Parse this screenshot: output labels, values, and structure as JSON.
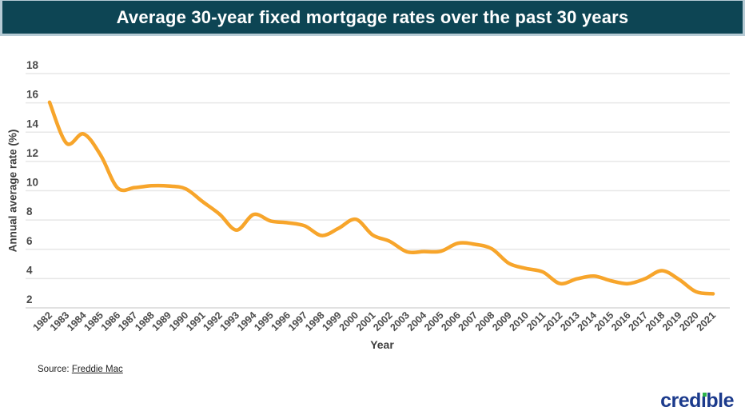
{
  "header": {
    "title": "Average 30-year fixed mortgage rates over the past 30 years"
  },
  "chart_data": {
    "type": "line",
    "title": "Average 30-year fixed mortgage rates over the past 30 years",
    "xlabel": "Year",
    "ylabel": "Annual average rate (%)",
    "x": [
      1982,
      1983,
      1984,
      1985,
      1986,
      1987,
      1988,
      1989,
      1990,
      1991,
      1992,
      1993,
      1994,
      1995,
      1996,
      1997,
      1998,
      1999,
      2000,
      2001,
      2002,
      2003,
      2004,
      2005,
      2006,
      2007,
      2008,
      2009,
      2010,
      2011,
      2012,
      2013,
      2014,
      2015,
      2016,
      2017,
      2018,
      2019,
      2020,
      2021
    ],
    "series": [
      {
        "name": "30-year fixed mortgage rate",
        "values": [
          16.04,
          13.24,
          13.88,
          12.43,
          10.19,
          10.21,
          10.34,
          10.32,
          10.13,
          9.25,
          8.39,
          7.31,
          8.38,
          7.93,
          7.81,
          7.6,
          6.94,
          7.44,
          8.05,
          6.97,
          6.54,
          5.83,
          5.84,
          5.87,
          6.41,
          6.34,
          6.03,
          5.04,
          4.69,
          4.45,
          3.66,
          3.98,
          4.17,
          3.85,
          3.65,
          3.99,
          4.54,
          3.94,
          3.1,
          2.96
        ]
      }
    ],
    "ylim": [
      2,
      18
    ],
    "yticks": [
      18,
      16,
      14,
      12,
      10,
      8,
      6,
      4,
      2
    ],
    "grid": true,
    "legend_position": "none",
    "line_color": "#f7a52b",
    "grid_color": "#e7e7e7",
    "baseline_color": "#d7d7d7",
    "tick_color": "#4a4a4a"
  },
  "footer": {
    "source_prefix": "Source: ",
    "source_link": "Freddie Mac",
    "logo_text": "credible"
  },
  "colors": {
    "title_bar_bg": "#0d4554",
    "title_bar_border": "#b6cbd5",
    "title_text": "#ffffff",
    "logo_blue": "#1b3a8c",
    "logo_green": "#2cb34a"
  }
}
